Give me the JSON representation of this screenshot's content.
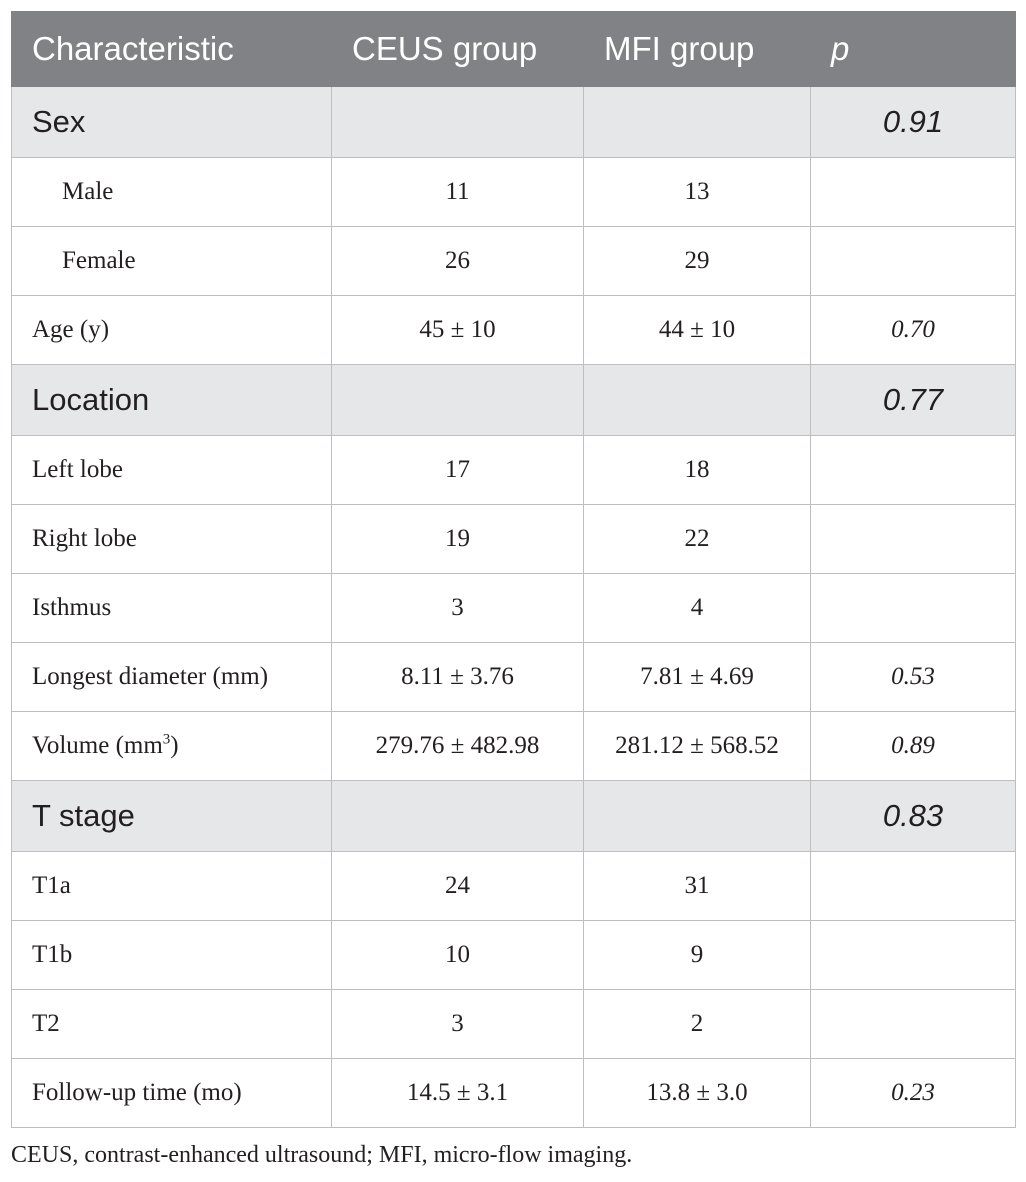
{
  "table": {
    "headers": {
      "characteristic": "Characteristic",
      "ceus": "CEUS group",
      "mfi": "MFI group",
      "p": "p"
    },
    "rows": [
      {
        "type": "section",
        "label": "Sex",
        "ceus": "",
        "mfi": "",
        "p": "0.91"
      },
      {
        "type": "sub",
        "label": "Male",
        "ceus": "11",
        "mfi": "13",
        "p": ""
      },
      {
        "type": "sub",
        "label": "Female",
        "ceus": "26",
        "mfi": "29",
        "p": ""
      },
      {
        "type": "row",
        "label": "Age (y)",
        "ceus": "45 ± 10",
        "mfi": "44 ± 10",
        "p": "0.70"
      },
      {
        "type": "section",
        "label": "Location",
        "ceus": "",
        "mfi": "",
        "p": "0.77"
      },
      {
        "type": "row",
        "label": "Left lobe",
        "ceus": "17",
        "mfi": "18",
        "p": ""
      },
      {
        "type": "row",
        "label": "Right lobe",
        "ceus": "19",
        "mfi": "22",
        "p": ""
      },
      {
        "type": "row",
        "label": "Isthmus",
        "ceus": "3",
        "mfi": "4",
        "p": ""
      },
      {
        "type": "row",
        "label": "Longest diameter (mm)",
        "ceus": "8.11 ± 3.76",
        "mfi": "7.81 ± 4.69",
        "p": "0.53"
      },
      {
        "type": "row",
        "label": "Volume (mm",
        "label_sup": "3",
        "label_after": ")",
        "ceus": "279.76 ± 482.98",
        "mfi": "281.12 ± 568.52",
        "p": "0.89"
      },
      {
        "type": "section",
        "label": "T stage",
        "ceus": "",
        "mfi": "",
        "p": "0.83"
      },
      {
        "type": "row",
        "label": "T1a",
        "ceus": "24",
        "mfi": "31",
        "p": ""
      },
      {
        "type": "row",
        "label": "T1b",
        "ceus": "10",
        "mfi": "9",
        "p": ""
      },
      {
        "type": "row",
        "label": "T2",
        "ceus": "3",
        "mfi": "2",
        "p": ""
      },
      {
        "type": "row",
        "label": "Follow-up time (mo)",
        "ceus": "14.5 ± 3.1",
        "mfi": "13.8 ± 3.0",
        "p": "0.23"
      }
    ]
  },
  "footnote": "CEUS, contrast-enhanced ultrasound; MFI, micro-flow imaging.",
  "colors": {
    "header_bg": "#808285",
    "section_bg": "#e6e7e8",
    "border": "#bcbec0"
  }
}
